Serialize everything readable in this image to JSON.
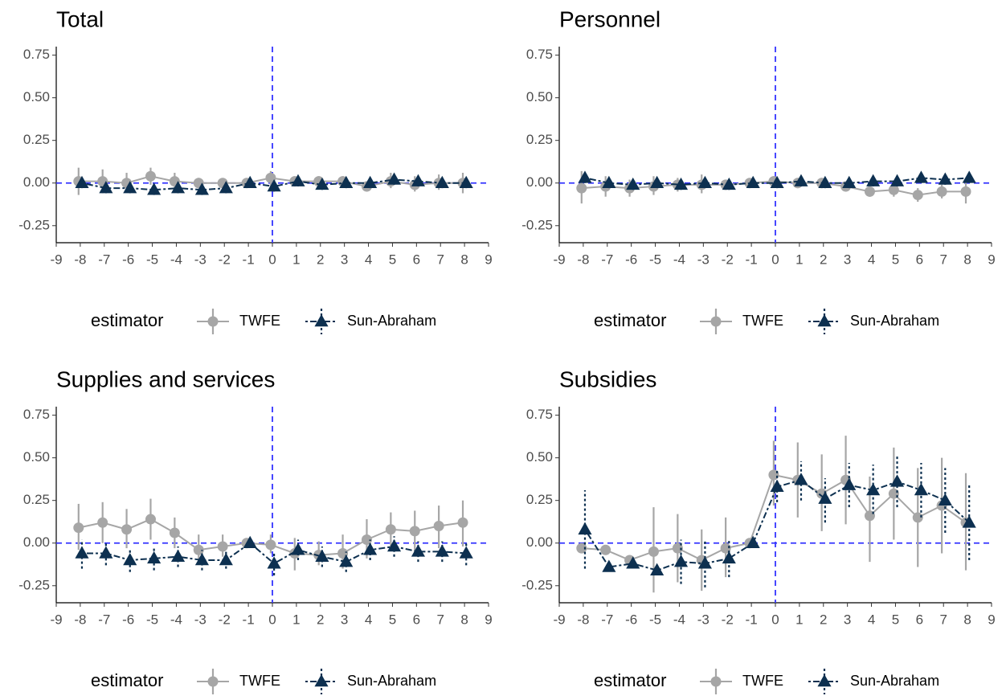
{
  "chart_data": [
    {
      "type": "line",
      "title": "Total",
      "legend_title": "estimator",
      "refline_x": 0,
      "refline_y": 0,
      "refline_color": "#3333ff",
      "x": [
        -8,
        -7,
        -6,
        -5,
        -4,
        -3,
        -2,
        -1,
        0,
        1,
        2,
        3,
        4,
        5,
        6,
        7,
        8
      ],
      "xlim": [
        -9,
        9
      ],
      "xticks": [
        -9,
        -8,
        -7,
        -6,
        -5,
        -4,
        -3,
        -2,
        -1,
        0,
        1,
        2,
        3,
        4,
        5,
        6,
        7,
        8,
        9
      ],
      "ylim": [
        -0.35,
        0.8
      ],
      "yticks": [
        {
          "value": -0.25,
          "label": "-0.25"
        },
        {
          "value": 0,
          "label": "0.00"
        },
        {
          "value": 0.25,
          "label": "0.25"
        },
        {
          "value": 0.5,
          "label": "0.50"
        },
        {
          "value": 0.75,
          "label": "0.75"
        }
      ],
      "series": [
        {
          "name": "TWFE",
          "color": "#a6a6a6",
          "values": [
            0.01,
            0.01,
            0.0,
            0.04,
            0.01,
            0.0,
            0.0,
            0,
            0.03,
            0.01,
            0.01,
            0.01,
            -0.02,
            0.01,
            -0.01,
            0.0,
            0.0
          ],
          "ci_lower": [
            -0.07,
            -0.06,
            -0.05,
            -0.01,
            -0.03,
            -0.03,
            -0.02,
            0,
            -0.02,
            -0.01,
            -0.01,
            -0.02,
            -0.05,
            -0.03,
            -0.05,
            -0.04,
            -0.06
          ],
          "ci_upper": [
            0.09,
            0.08,
            0.06,
            0.09,
            0.06,
            0.03,
            0.02,
            0,
            0.07,
            0.04,
            0.04,
            0.04,
            0.01,
            0.06,
            0.04,
            0.05,
            0.06
          ]
        },
        {
          "name": "Sun-Abraham",
          "color": "#0d3050",
          "values": [
            0.0,
            -0.03,
            -0.03,
            -0.04,
            -0.03,
            -0.04,
            -0.03,
            0,
            -0.02,
            0.01,
            -0.01,
            0.0,
            0.0,
            0.02,
            0.01,
            0.0,
            0.0
          ],
          "ci_lower": [
            -0.03,
            -0.06,
            -0.06,
            -0.07,
            -0.06,
            -0.07,
            -0.06,
            0,
            -0.05,
            -0.02,
            -0.04,
            -0.03,
            -0.03,
            -0.01,
            -0.02,
            -0.03,
            -0.03
          ],
          "ci_upper": [
            0.03,
            0.0,
            0.0,
            -0.01,
            0.0,
            -0.01,
            0.0,
            0,
            0.01,
            0.04,
            0.02,
            0.03,
            0.03,
            0.05,
            0.04,
            0.03,
            0.03
          ]
        }
      ]
    },
    {
      "type": "line",
      "title": "Personnel",
      "legend_title": "estimator",
      "refline_x": 0,
      "refline_y": 0,
      "refline_color": "#3333ff",
      "x": [
        -8,
        -7,
        -6,
        -5,
        -4,
        -3,
        -2,
        -1,
        0,
        1,
        2,
        3,
        4,
        5,
        6,
        7,
        8
      ],
      "xlim": [
        -9,
        9
      ],
      "xticks": [
        -9,
        -8,
        -7,
        -6,
        -5,
        -4,
        -3,
        -2,
        -1,
        0,
        1,
        2,
        3,
        4,
        5,
        6,
        7,
        8,
        9
      ],
      "ylim": [
        -0.35,
        0.8
      ],
      "yticks": [
        {
          "value": -0.25,
          "label": "-0.25"
        },
        {
          "value": 0,
          "label": "0.00"
        },
        {
          "value": 0.25,
          "label": "0.25"
        },
        {
          "value": 0.5,
          "label": "0.50"
        },
        {
          "value": 0.75,
          "label": "0.75"
        }
      ],
      "series": [
        {
          "name": "TWFE",
          "color": "#a6a6a6",
          "values": [
            -0.03,
            -0.02,
            -0.03,
            -0.02,
            -0.01,
            -0.01,
            -0.01,
            0,
            0.01,
            0.0,
            0.0,
            -0.02,
            -0.05,
            -0.04,
            -0.07,
            -0.05,
            -0.05
          ],
          "ci_lower": [
            -0.12,
            -0.08,
            -0.08,
            -0.07,
            -0.05,
            -0.06,
            -0.04,
            0,
            -0.02,
            -0.03,
            -0.03,
            -0.05,
            -0.08,
            -0.08,
            -0.11,
            -0.09,
            -0.12
          ],
          "ci_upper": [
            0.07,
            0.04,
            0.02,
            0.04,
            0.03,
            0.05,
            0.02,
            0,
            0.04,
            0.03,
            0.03,
            0.01,
            -0.02,
            0.0,
            -0.03,
            -0.01,
            0.02
          ]
        },
        {
          "name": "Sun-Abraham",
          "color": "#0d3050",
          "values": [
            0.03,
            0.0,
            -0.01,
            0.0,
            -0.01,
            0.0,
            -0.01,
            0,
            0.0,
            0.01,
            0.0,
            0.0,
            0.01,
            0.01,
            0.03,
            0.02,
            0.03
          ],
          "ci_lower": [
            0.0,
            -0.03,
            -0.04,
            -0.03,
            -0.04,
            -0.03,
            -0.04,
            0,
            -0.03,
            -0.02,
            -0.03,
            -0.03,
            -0.02,
            -0.02,
            0.0,
            -0.01,
            0.0
          ],
          "ci_upper": [
            0.06,
            0.03,
            0.02,
            0.03,
            0.02,
            0.03,
            0.02,
            0,
            0.03,
            0.04,
            0.03,
            0.03,
            0.04,
            0.04,
            0.06,
            0.05,
            0.06
          ]
        }
      ]
    },
    {
      "type": "line",
      "title": "Supplies and services",
      "legend_title": "estimator",
      "refline_x": 0,
      "refline_y": 0,
      "refline_color": "#3333ff",
      "x": [
        -8,
        -7,
        -6,
        -5,
        -4,
        -3,
        -2,
        -1,
        0,
        1,
        2,
        3,
        4,
        5,
        6,
        7,
        8
      ],
      "xlim": [
        -9,
        9
      ],
      "xticks": [
        -9,
        -8,
        -7,
        -6,
        -5,
        -4,
        -3,
        -2,
        -1,
        0,
        1,
        2,
        3,
        4,
        5,
        6,
        7,
        8,
        9
      ],
      "ylim": [
        -0.35,
        0.8
      ],
      "yticks": [
        {
          "value": -0.25,
          "label": "-0.25"
        },
        {
          "value": 0,
          "label": "0.00"
        },
        {
          "value": 0.25,
          "label": "0.25"
        },
        {
          "value": 0.5,
          "label": "0.50"
        },
        {
          "value": 0.75,
          "label": "0.75"
        }
      ],
      "series": [
        {
          "name": "TWFE",
          "color": "#a6a6a6",
          "values": [
            0.09,
            0.12,
            0.08,
            0.14,
            0.06,
            -0.04,
            -0.02,
            0,
            -0.01,
            -0.06,
            -0.07,
            -0.06,
            0.02,
            0.08,
            0.07,
            0.1,
            0.12
          ],
          "ci_lower": [
            -0.04,
            0.0,
            -0.03,
            0.02,
            -0.03,
            -0.12,
            -0.08,
            0,
            -0.06,
            -0.16,
            -0.13,
            -0.15,
            -0.09,
            -0.04,
            -0.05,
            -0.03,
            -0.02
          ],
          "ci_upper": [
            0.23,
            0.24,
            0.2,
            0.26,
            0.15,
            0.05,
            0.05,
            0,
            0.05,
            0.03,
            0.01,
            0.05,
            0.14,
            0.18,
            0.19,
            0.22,
            0.25
          ]
        },
        {
          "name": "Sun-Abraham",
          "color": "#0d3050",
          "values": [
            -0.06,
            -0.06,
            -0.1,
            -0.09,
            -0.08,
            -0.1,
            -0.1,
            0,
            -0.12,
            -0.04,
            -0.08,
            -0.11,
            -0.04,
            -0.02,
            -0.05,
            -0.05,
            -0.06
          ],
          "ci_lower": [
            -0.15,
            -0.13,
            -0.17,
            -0.16,
            -0.14,
            -0.16,
            -0.15,
            0,
            -0.19,
            -0.1,
            -0.14,
            -0.17,
            -0.1,
            -0.08,
            -0.11,
            -0.11,
            -0.13
          ],
          "ci_upper": [
            0.02,
            0.01,
            -0.03,
            -0.02,
            -0.02,
            -0.04,
            -0.05,
            0,
            -0.06,
            0.02,
            -0.02,
            -0.05,
            0.02,
            0.04,
            0.01,
            0.01,
            0.01
          ]
        }
      ]
    },
    {
      "type": "line",
      "title": "Subsidies",
      "legend_title": "estimator",
      "refline_x": 0,
      "refline_y": 0,
      "refline_color": "#3333ff",
      "x": [
        -8,
        -7,
        -6,
        -5,
        -4,
        -3,
        -2,
        -1,
        0,
        1,
        2,
        3,
        4,
        5,
        6,
        7,
        8
      ],
      "xlim": [
        -9,
        9
      ],
      "xticks": [
        -9,
        -8,
        -7,
        -6,
        -5,
        -4,
        -3,
        -2,
        -1,
        0,
        1,
        2,
        3,
        4,
        5,
        6,
        7,
        8,
        9
      ],
      "ylim": [
        -0.35,
        0.8
      ],
      "yticks": [
        {
          "value": -0.25,
          "label": "-0.25"
        },
        {
          "value": 0,
          "label": "0.00"
        },
        {
          "value": 0.25,
          "label": "0.25"
        },
        {
          "value": 0.5,
          "label": "0.50"
        },
        {
          "value": 0.75,
          "label": "0.75"
        }
      ],
      "series": [
        {
          "name": "TWFE",
          "color": "#a6a6a6",
          "values": [
            -0.03,
            -0.04,
            -0.1,
            -0.05,
            -0.03,
            -0.1,
            -0.03,
            0,
            0.4,
            0.37,
            0.29,
            0.37,
            0.16,
            0.29,
            0.15,
            0.22,
            0.12
          ],
          "ci_lower": [
            -0.05,
            -0.06,
            -0.12,
            -0.29,
            -0.23,
            -0.28,
            -0.2,
            0,
            0.22,
            0.15,
            0.07,
            0.11,
            -0.11,
            0.02,
            -0.14,
            -0.06,
            -0.16
          ],
          "ci_upper": [
            -0.01,
            -0.02,
            -0.08,
            0.21,
            0.17,
            0.08,
            0.15,
            0,
            0.6,
            0.59,
            0.52,
            0.63,
            0.39,
            0.56,
            0.44,
            0.5,
            0.41
          ]
        },
        {
          "name": "Sun-Abraham",
          "color": "#0d3050",
          "values": [
            0.08,
            -0.14,
            -0.12,
            -0.16,
            -0.11,
            -0.12,
            -0.09,
            0,
            0.33,
            0.37,
            0.26,
            0.34,
            0.31,
            0.36,
            0.31,
            0.25,
            0.12
          ],
          "ci_lower": [
            -0.15,
            -0.16,
            -0.14,
            -0.18,
            -0.24,
            -0.26,
            -0.2,
            0,
            0.24,
            0.25,
            0.12,
            0.21,
            0.17,
            0.21,
            0.15,
            0.06,
            -0.1
          ],
          "ci_upper": [
            0.31,
            -0.12,
            -0.1,
            -0.14,
            0.02,
            0.01,
            0.02,
            0,
            0.43,
            0.48,
            0.38,
            0.47,
            0.46,
            0.52,
            0.47,
            0.44,
            0.34
          ]
        }
      ]
    }
  ]
}
